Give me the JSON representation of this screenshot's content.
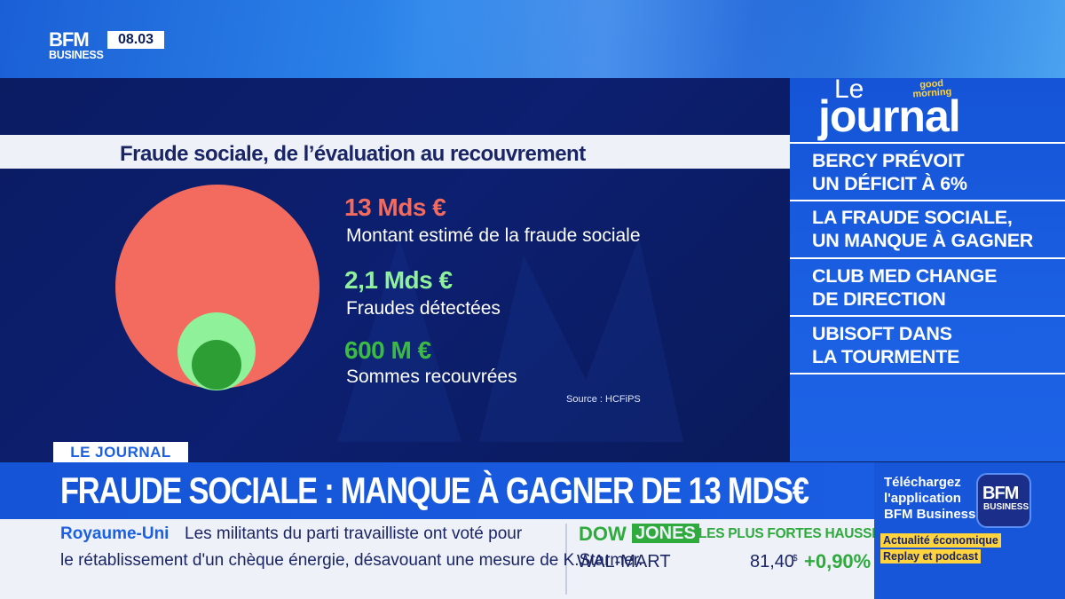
{
  "channel": {
    "logo_line1": "BFM",
    "logo_line2": "BUSINESS",
    "time": "08.03"
  },
  "graphic": {
    "title": "Fraude sociale, de l’évaluation au recouvrement",
    "items": [
      {
        "value": "13 Mds €",
        "label": "Montant estimé de la fraude sociale",
        "color": "#f26b5e"
      },
      {
        "value": "2,1 Mds €",
        "label": "Fraudes détectées",
        "color": "#8ff29a"
      },
      {
        "value": "600 M €",
        "label": "Sommes recouvrées",
        "color": "#33a83a"
      }
    ],
    "source": "Source : HCFiPS"
  },
  "journal": {
    "le": "Le",
    "word": "journal",
    "gm_line1": "good",
    "gm_line2": "morning",
    "headlines": [
      {
        "line1": "BERCY PRÉVOIT",
        "line2": "UN DÉFICIT À 6%"
      },
      {
        "line1": "LA FRAUDE SOCIALE,",
        "line2": "UN MANQUE À GAGNER"
      },
      {
        "line1": "CLUB MED CHANGE",
        "line2": "DE DIRECTION"
      },
      {
        "line1": "UBISOFT DANS",
        "line2": "LA TOURMENTE"
      }
    ]
  },
  "lower_third": {
    "tag": "LE JOURNAL",
    "headline": "FRAUDE SOCIALE : MANQUE À GAGNER DE 13 MDS€"
  },
  "ticker": {
    "country": "Royaume-Uni",
    "line1": "Les militants du parti travailliste ont voté pour",
    "line2": "le rétablissement d'un chèque énergie, désavouant une mesure de K.Starmer."
  },
  "market": {
    "dow": "DOW",
    "jones": "JONES",
    "label": "LES PLUS FORTES HAUSSES",
    "stock": "WAL-MART",
    "price": "81,40",
    "currency": "$",
    "change": "+0,90%"
  },
  "promo": {
    "line1": "Téléchargez",
    "line2": "l'application",
    "line3": "BFM Business",
    "logo_line1": "BFM",
    "logo_line2": "BUSINESS",
    "tag1": "Actualité économique",
    "tag2": "Replay et podcast"
  }
}
